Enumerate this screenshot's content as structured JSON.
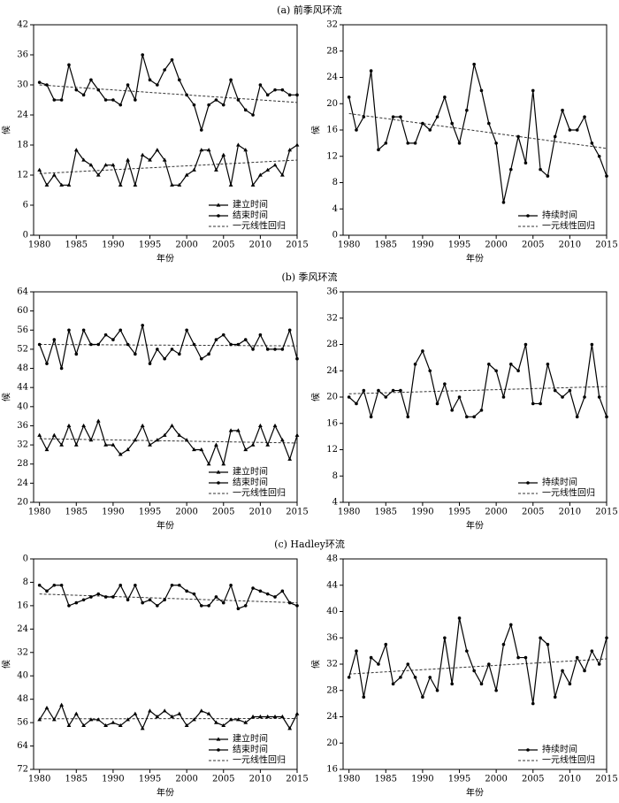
{
  "chart_data": [
    {
      "type": "line",
      "title": "(a) 前季风环流",
      "xlabel": "年份",
      "ylabel": "候",
      "x": [
        1980,
        1981,
        1982,
        1983,
        1984,
        1985,
        1986,
        1987,
        1988,
        1989,
        1990,
        1991,
        1992,
        1993,
        1994,
        1995,
        1996,
        1997,
        1998,
        1999,
        2000,
        2001,
        2002,
        2003,
        2004,
        2005,
        2006,
        2007,
        2008,
        2009,
        2010,
        2011,
        2012,
        2013,
        2014,
        2015
      ],
      "xlim": [
        1979.2,
        2015
      ],
      "xticks": [
        1980,
        1985,
        1990,
        1995,
        2000,
        2005,
        2010,
        2015
      ],
      "ylim": [
        0,
        42
      ],
      "yticks": [
        0,
        6,
        12,
        18,
        24,
        30,
        36,
        42
      ],
      "invert_y": false,
      "series": [
        {
          "name": "建立时间",
          "color": "#000000",
          "marker": "triangle",
          "values": [
            13,
            10,
            12,
            10,
            10,
            17,
            15,
            14,
            12,
            14,
            14,
            10,
            15,
            10,
            16,
            15,
            17,
            15,
            10,
            10,
            12,
            13,
            17,
            17,
            13,
            16,
            10,
            18,
            17,
            10,
            12,
            13,
            14,
            12,
            17,
            18
          ]
        },
        {
          "name": "结束时间",
          "color": "#000000",
          "marker": "circle",
          "values": [
            30.5,
            30,
            27,
            27,
            34,
            29,
            28,
            31,
            29,
            27,
            27,
            26,
            30,
            27,
            36,
            31,
            30,
            33,
            35,
            31,
            28,
            26,
            21,
            26,
            27,
            26,
            31,
            27,
            25,
            24,
            30,
            28,
            29,
            29,
            28,
            28
          ]
        }
      ],
      "trend_name": "一元线性回归",
      "trends": [
        {
          "x": [
            1980,
            2015
          ],
          "values": [
            12.3,
            15
          ]
        },
        {
          "x": [
            1980,
            2015
          ],
          "values": [
            30,
            26.5
          ]
        }
      ],
      "legend": "lower right"
    },
    {
      "type": "line",
      "xlabel": "年份",
      "ylabel": "候",
      "x": [
        1980,
        1981,
        1982,
        1983,
        1984,
        1985,
        1986,
        1987,
        1988,
        1989,
        1990,
        1991,
        1992,
        1993,
        1994,
        1995,
        1996,
        1997,
        1998,
        1999,
        2000,
        2001,
        2002,
        2003,
        2004,
        2005,
        2006,
        2007,
        2008,
        2009,
        2010,
        2011,
        2012,
        2013,
        2014,
        2015
      ],
      "xlim": [
        1979.2,
        2015
      ],
      "xticks": [
        1980,
        1985,
        1990,
        1995,
        2000,
        2005,
        2010,
        2015
      ],
      "ylim": [
        0,
        32
      ],
      "yticks": [
        0,
        4,
        8,
        12,
        16,
        20,
        24,
        28,
        32
      ],
      "invert_y": false,
      "series": [
        {
          "name": "持续时间",
          "color": "#000000",
          "marker": "circle",
          "values": [
            21,
            16,
            18,
            25,
            13,
            14,
            18,
            18,
            14,
            14,
            17,
            16,
            18,
            21,
            17,
            14,
            19,
            26,
            22,
            17,
            14,
            5,
            10,
            15,
            11,
            22,
            10,
            9,
            15,
            19,
            16,
            16,
            18,
            14,
            12,
            9
          ]
        }
      ],
      "trend_name": "一元线性回归",
      "trends": [
        {
          "x": [
            1980,
            2015
          ],
          "values": [
            18.5,
            13.2
          ]
        }
      ],
      "legend": "lower right"
    },
    {
      "type": "line",
      "title": "(b) 季风环流",
      "xlabel": "年份",
      "ylabel": "候",
      "x": [
        1980,
        1981,
        1982,
        1983,
        1984,
        1985,
        1986,
        1987,
        1988,
        1989,
        1990,
        1991,
        1992,
        1993,
        1994,
        1995,
        1996,
        1997,
        1998,
        1999,
        2000,
        2001,
        2002,
        2003,
        2004,
        2005,
        2006,
        2007,
        2008,
        2009,
        2010,
        2011,
        2012,
        2013,
        2014,
        2015
      ],
      "xlim": [
        1979.2,
        2015
      ],
      "xticks": [
        1980,
        1985,
        1990,
        1995,
        2000,
        2005,
        2010,
        2015
      ],
      "ylim": [
        20,
        64
      ],
      "yticks": [
        20,
        24,
        28,
        32,
        36,
        40,
        44,
        48,
        52,
        56,
        60,
        64
      ],
      "invert_y": false,
      "series": [
        {
          "name": "建立时间",
          "color": "#000000",
          "marker": "triangle",
          "values": [
            34,
            31,
            34,
            32,
            36,
            32,
            36,
            33,
            37,
            32,
            32,
            30,
            31,
            33,
            36,
            32,
            33,
            34,
            36,
            34,
            33,
            31,
            31,
            28,
            32,
            28,
            35,
            35,
            31,
            32,
            36,
            32,
            36,
            33,
            29,
            34
          ]
        },
        {
          "name": "结束时间",
          "color": "#000000",
          "marker": "circle",
          "values": [
            53,
            49,
            54,
            48,
            56,
            51,
            56,
            53,
            53,
            55,
            54,
            56,
            53,
            51,
            57,
            49,
            52,
            50,
            52,
            51,
            56,
            53,
            50,
            51,
            54,
            55,
            53,
            53,
            54,
            52,
            55,
            52,
            52,
            52,
            56,
            50
          ]
        }
      ],
      "trend_name": "一元线性回归",
      "trends": [
        {
          "x": [
            1980,
            2015
          ],
          "values": [
            33.3,
            32.4
          ]
        },
        {
          "x": [
            1980,
            2015
          ],
          "values": [
            53,
            52.7
          ]
        }
      ],
      "legend": "lower right"
    },
    {
      "type": "line",
      "xlabel": "年份",
      "ylabel": "候",
      "x": [
        1980,
        1981,
        1982,
        1983,
        1984,
        1985,
        1986,
        1987,
        1988,
        1989,
        1990,
        1991,
        1992,
        1993,
        1994,
        1995,
        1996,
        1997,
        1998,
        1999,
        2000,
        2001,
        2002,
        2003,
        2004,
        2005,
        2006,
        2007,
        2008,
        2009,
        2010,
        2011,
        2012,
        2013,
        2014,
        2015
      ],
      "xlim": [
        1979.2,
        2015
      ],
      "xticks": [
        1980,
        1985,
        1990,
        1995,
        2000,
        2005,
        2010,
        2015
      ],
      "ylim": [
        4,
        36
      ],
      "yticks": [
        4,
        8,
        12,
        16,
        20,
        24,
        28,
        32,
        36
      ],
      "invert_y": false,
      "series": [
        {
          "name": "持续时间",
          "color": "#000000",
          "marker": "circle",
          "values": [
            20,
            19,
            21,
            17,
            21,
            20,
            21,
            21,
            17,
            25,
            27,
            24,
            19,
            22,
            18,
            20,
            17,
            17,
            18,
            25,
            24,
            20,
            25,
            24,
            28,
            19,
            19,
            25,
            21,
            20,
            21,
            17,
            20,
            28,
            20,
            17
          ]
        }
      ],
      "trend_name": "一元线性回归",
      "trends": [
        {
          "x": [
            1980,
            2015
          ],
          "values": [
            20.5,
            21.6
          ]
        }
      ],
      "legend": "lower right"
    },
    {
      "type": "line",
      "title": "(c) Hadley环流",
      "xlabel": "年份",
      "ylabel": "候",
      "x": [
        1980,
        1981,
        1982,
        1983,
        1984,
        1985,
        1986,
        1987,
        1988,
        1989,
        1990,
        1991,
        1992,
        1993,
        1994,
        1995,
        1996,
        1997,
        1998,
        1999,
        2000,
        2001,
        2002,
        2003,
        2004,
        2005,
        2006,
        2007,
        2008,
        2009,
        2010,
        2011,
        2012,
        2013,
        2014,
        2015
      ],
      "xlim": [
        1979.2,
        2015
      ],
      "xticks": [
        1980,
        1985,
        1990,
        1995,
        2000,
        2005,
        2010,
        2015
      ],
      "ylim": [
        0,
        72
      ],
      "yticks": [
        0,
        8,
        16,
        24,
        32,
        40,
        48,
        56,
        64,
        72
      ],
      "invert_y": true,
      "series": [
        {
          "name": "建立时间",
          "color": "#000000",
          "marker": "triangle",
          "values": [
            55,
            51,
            55,
            50,
            57,
            53,
            57,
            55,
            55,
            57,
            56,
            57,
            55,
            53,
            58,
            52,
            54,
            52,
            54,
            53,
            57,
            55,
            52,
            53,
            56,
            57,
            55,
            55,
            56,
            54,
            54,
            54,
            54,
            54,
            58,
            53
          ]
        },
        {
          "name": "结束时间",
          "color": "#000000",
          "marker": "circle",
          "values": [
            9,
            11,
            9,
            9,
            16,
            15,
            14,
            13,
            12,
            13,
            13,
            9,
            14,
            9,
            15,
            14,
            16,
            14,
            9,
            9,
            11,
            12,
            16,
            16,
            13,
            15,
            9,
            17,
            16,
            10,
            11,
            12,
            13,
            11,
            15,
            16
          ]
        }
      ],
      "trend_name": "一元线性回归",
      "trends": [
        {
          "x": [
            1980,
            2015
          ],
          "values": [
            54.7,
            54.6
          ]
        },
        {
          "x": [
            1980,
            2015
          ],
          "values": [
            12,
            15
          ]
        }
      ],
      "legend": "lower right"
    },
    {
      "type": "line",
      "xlabel": "年份",
      "ylabel": "候",
      "x": [
        1980,
        1981,
        1982,
        1983,
        1984,
        1985,
        1986,
        1987,
        1988,
        1989,
        1990,
        1991,
        1992,
        1993,
        1994,
        1995,
        1996,
        1997,
        1998,
        1999,
        2000,
        2001,
        2002,
        2003,
        2004,
        2005,
        2006,
        2007,
        2008,
        2009,
        2010,
        2011,
        2012,
        2013,
        2014,
        2015
      ],
      "xlim": [
        1979.2,
        2015
      ],
      "xticks": [
        1980,
        1985,
        1990,
        1995,
        2000,
        2005,
        2010,
        2015
      ],
      "ylim": [
        16,
        48
      ],
      "yticks": [
        16,
        20,
        24,
        28,
        32,
        36,
        40,
        44,
        48
      ],
      "invert_y": false,
      "series": [
        {
          "name": "持续时间",
          "color": "#000000",
          "marker": "circle",
          "values": [
            30,
            34,
            27,
            33,
            32,
            35,
            29,
            30,
            32,
            30,
            27,
            30,
            28,
            36,
            29,
            39,
            34,
            31,
            29,
            32,
            28,
            35,
            38,
            33,
            33,
            26,
            36,
            35,
            27,
            31,
            29,
            33,
            31,
            34,
            32,
            36
          ]
        }
      ],
      "trend_name": "一元线性回归",
      "trends": [
        {
          "x": [
            1980,
            2015
          ],
          "values": [
            30.5,
            32.8
          ]
        }
      ],
      "legend": "lower right"
    }
  ]
}
